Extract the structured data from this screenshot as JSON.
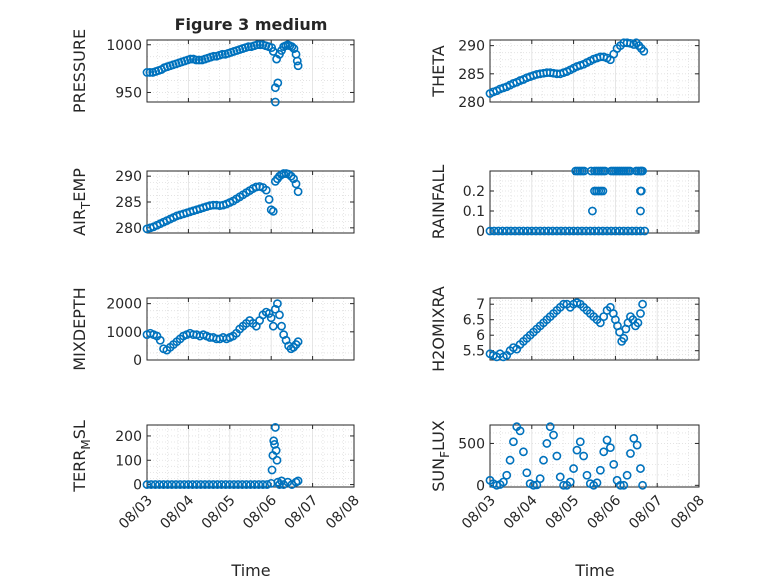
{
  "figure_title": "Figure 3 medium",
  "x_axis_label": "Time",
  "x_tick_labels": [
    "08/03",
    "08/04",
    "08/05",
    "08/06",
    "08/07",
    "08/08"
  ],
  "colors": {
    "marker": "#0072BD",
    "axis": "#262626",
    "grid": "#dfdfdf"
  },
  "chart_data": [
    {
      "type": "scatter",
      "title": "Figure 3 medium",
      "ylabel": "PRESSURE",
      "xlabel": "",
      "xlim": [
        0,
        5
      ],
      "ylim": [
        940,
        1005
      ],
      "yticks": [
        950,
        1000
      ],
      "grid": true,
      "x": [
        0,
        0.07,
        0.14,
        0.21,
        0.28,
        0.35,
        0.42,
        0.49,
        0.56,
        0.63,
        0.7,
        0.77,
        0.84,
        0.91,
        0.98,
        1.05,
        1.12,
        1.19,
        1.26,
        1.33,
        1.4,
        1.47,
        1.54,
        1.61,
        1.68,
        1.75,
        1.82,
        1.89,
        1.96,
        2.03,
        2.1,
        2.17,
        2.24,
        2.31,
        2.38,
        2.45,
        2.52,
        2.59,
        2.66,
        2.73,
        2.8,
        2.87,
        2.94,
        3.01,
        3.05,
        3.1,
        3.1,
        3.13,
        3.16,
        3.2,
        3.25,
        3.3,
        3.35,
        3.4,
        3.45,
        3.5,
        3.55,
        3.6,
        3.63,
        3.65
      ],
      "y": [
        971,
        971,
        971,
        972,
        973,
        974,
        976,
        977,
        978,
        979,
        980,
        981,
        982,
        983,
        984,
        985,
        985,
        984,
        984,
        984,
        985,
        986,
        987,
        988,
        988,
        989,
        990,
        990,
        991,
        992,
        993,
        994,
        995,
        996,
        997,
        998,
        998,
        999,
        1000,
        1000,
        1000,
        999,
        998,
        997,
        993,
        955,
        940,
        985,
        960,
        990,
        994,
        998,
        999,
        1000,
        999,
        998,
        996,
        990,
        983,
        978
      ]
    },
    {
      "type": "scatter",
      "title": "",
      "ylabel": "THETA",
      "xlabel": "",
      "xlim": [
        0,
        5
      ],
      "ylim": [
        280,
        291
      ],
      "yticks": [
        280,
        285,
        290
      ],
      "grid": true,
      "x": [
        0,
        0.08,
        0.16,
        0.24,
        0.32,
        0.4,
        0.48,
        0.56,
        0.64,
        0.72,
        0.8,
        0.88,
        0.96,
        1.04,
        1.12,
        1.2,
        1.28,
        1.36,
        1.44,
        1.52,
        1.6,
        1.68,
        1.76,
        1.84,
        1.92,
        2,
        2.08,
        2.16,
        2.24,
        2.32,
        2.4,
        2.48,
        2.56,
        2.64,
        2.72,
        2.8,
        2.88,
        2.96,
        3.04,
        3.12,
        3.2,
        3.28,
        3.36,
        3.44,
        3.5,
        3.56,
        3.62,
        3.68
      ],
      "y": [
        281.5,
        281.8,
        282,
        282.3,
        282.5,
        282.7,
        283,
        283.3,
        283.5,
        283.8,
        284,
        284.3,
        284.5,
        284.7,
        284.9,
        285,
        285.1,
        285.2,
        285.2,
        285.1,
        285,
        285,
        285.2,
        285.4,
        285.7,
        286,
        286.3,
        286.5,
        286.7,
        287,
        287.3,
        287.6,
        287.8,
        288,
        288,
        287.8,
        287.5,
        288.5,
        289.5,
        290,
        290.5,
        290.5,
        290.4,
        290.2,
        290.5,
        290,
        289.5,
        289
      ]
    },
    {
      "type": "scatter",
      "title": "",
      "ylabel": "AIR_TEMP",
      "xlabel": "",
      "xlim": [
        0,
        5
      ],
      "ylim": [
        279,
        291
      ],
      "yticks": [
        280,
        285,
        290
      ],
      "grid": true,
      "x": [
        0,
        0.08,
        0.16,
        0.24,
        0.32,
        0.4,
        0.48,
        0.56,
        0.64,
        0.72,
        0.8,
        0.88,
        0.96,
        1.04,
        1.12,
        1.2,
        1.28,
        1.36,
        1.44,
        1.52,
        1.6,
        1.68,
        1.76,
        1.84,
        1.92,
        2,
        2.08,
        2.16,
        2.24,
        2.32,
        2.4,
        2.48,
        2.56,
        2.64,
        2.72,
        2.8,
        2.88,
        2.95,
        3.0,
        3.05,
        3.1,
        3.15,
        3.2,
        3.25,
        3.3,
        3.36,
        3.42,
        3.48,
        3.54,
        3.6,
        3.65
      ],
      "y": [
        279.8,
        280,
        280.2,
        280.5,
        280.8,
        281.1,
        281.4,
        281.7,
        282,
        282.3,
        282.5,
        282.7,
        282.9,
        283.1,
        283.3,
        283.5,
        283.7,
        283.9,
        284.1,
        284.3,
        284.4,
        284.4,
        284.3,
        284.4,
        284.6,
        284.9,
        285.2,
        285.6,
        286,
        286.4,
        286.8,
        287.2,
        287.6,
        287.9,
        288,
        287.8,
        287.3,
        285.5,
        283.5,
        283.2,
        289,
        289.5,
        290,
        290.3,
        290.5,
        290.5,
        290.4,
        290,
        289.5,
        288.5,
        287
      ]
    },
    {
      "type": "scatter",
      "title": "",
      "ylabel": "RAINFALL",
      "xlabel": "",
      "xlim": [
        0,
        5
      ],
      "ylim": [
        -0.01,
        0.3
      ],
      "yticks": [
        0,
        0.1,
        0.2
      ],
      "grid": true,
      "x": [
        0,
        0.1,
        0.2,
        0.3,
        0.4,
        0.5,
        0.6,
        0.7,
        0.8,
        0.9,
        1,
        1.1,
        1.2,
        1.3,
        1.4,
        1.5,
        1.6,
        1.7,
        1.8,
        1.9,
        2,
        2.1,
        2.2,
        2.3,
        2.4,
        2.5,
        2.6,
        2.7,
        2.8,
        2.9,
        3,
        3.1,
        3.2,
        3.3,
        3.4,
        3.5,
        3.6,
        3.7,
        2.05,
        2.1,
        2.15,
        2.2,
        2.25,
        2.42,
        2.5,
        2.55,
        2.6,
        2.65,
        2.7,
        2.75,
        2.9,
        2.95,
        3.0,
        3.05,
        3.1,
        3.15,
        3.2,
        3.25,
        3.3,
        3.35,
        3.5,
        3.55,
        3.6,
        3.62,
        3.65,
        2.5,
        2.55,
        2.6,
        2.65,
        2.7,
        3.6,
        3.62,
        2.45,
        3.6
      ],
      "y": [
        0,
        0,
        0,
        0,
        0,
        0,
        0,
        0,
        0,
        0,
        0,
        0,
        0,
        0,
        0,
        0,
        0,
        0,
        0,
        0,
        0,
        0,
        0,
        0,
        0,
        0,
        0,
        0,
        0,
        0,
        0,
        0,
        0,
        0,
        0,
        0,
        0,
        0,
        0.3,
        0.3,
        0.3,
        0.3,
        0.3,
        0.3,
        0.3,
        0.3,
        0.3,
        0.3,
        0.3,
        0.3,
        0.3,
        0.3,
        0.3,
        0.3,
        0.3,
        0.3,
        0.3,
        0.3,
        0.3,
        0.3,
        0.3,
        0.3,
        0.3,
        0.3,
        0.3,
        0.2,
        0.2,
        0.2,
        0.2,
        0.2,
        0.2,
        0.2,
        0.1,
        0.1
      ]
    },
    {
      "type": "scatter",
      "title": "",
      "ylabel": "MIXDEPTH",
      "xlabel": "",
      "xlim": [
        0,
        5
      ],
      "ylim": [
        0,
        2200
      ],
      "yticks": [
        0,
        1000,
        2000
      ],
      "grid": true,
      "x": [
        0,
        0.08,
        0.16,
        0.24,
        0.32,
        0.4,
        0.48,
        0.56,
        0.64,
        0.72,
        0.8,
        0.88,
        0.96,
        1.04,
        1.12,
        1.2,
        1.28,
        1.36,
        1.44,
        1.52,
        1.6,
        1.68,
        1.76,
        1.84,
        1.92,
        2,
        2.08,
        2.16,
        2.24,
        2.32,
        2.4,
        2.48,
        2.56,
        2.64,
        2.72,
        2.8,
        2.88,
        2.95,
        3.0,
        3.05,
        3.1,
        3.15,
        3.2,
        3.25,
        3.3,
        3.36,
        3.42,
        3.48,
        3.54,
        3.6,
        3.65
      ],
      "y": [
        900,
        950,
        900,
        850,
        700,
        400,
        350,
        450,
        550,
        650,
        750,
        850,
        900,
        950,
        900,
        900,
        850,
        900,
        850,
        800,
        800,
        750,
        750,
        800,
        750,
        800,
        850,
        950,
        1100,
        1200,
        1300,
        1400,
        1300,
        1200,
        1400,
        1600,
        1700,
        1650,
        1500,
        1200,
        1800,
        2000,
        1600,
        1200,
        900,
        700,
        500,
        400,
        450,
        550,
        650
      ]
    },
    {
      "type": "scatter",
      "title": "",
      "ylabel": "H2OMIXRA",
      "xlabel": "",
      "xlim": [
        0,
        5
      ],
      "ylim": [
        5.2,
        7.2
      ],
      "yticks": [
        5.5,
        6,
        6.5,
        7
      ],
      "grid": true,
      "x": [
        0,
        0.08,
        0.16,
        0.24,
        0.32,
        0.4,
        0.48,
        0.56,
        0.64,
        0.72,
        0.8,
        0.88,
        0.96,
        1.04,
        1.12,
        1.2,
        1.28,
        1.36,
        1.44,
        1.52,
        1.6,
        1.68,
        1.76,
        1.84,
        1.92,
        2,
        2.08,
        2.16,
        2.24,
        2.32,
        2.4,
        2.48,
        2.56,
        2.64,
        2.72,
        2.8,
        2.88,
        2.95,
        3.0,
        3.05,
        3.1,
        3.15,
        3.2,
        3.25,
        3.3,
        3.36,
        3.42,
        3.48,
        3.54,
        3.6,
        3.65
      ],
      "y": [
        5.4,
        5.35,
        5.3,
        5.4,
        5.3,
        5.35,
        5.5,
        5.6,
        5.55,
        5.7,
        5.8,
        5.9,
        6,
        6.1,
        6.2,
        6.3,
        6.4,
        6.5,
        6.6,
        6.7,
        6.8,
        6.9,
        7,
        7,
        6.9,
        7,
        7.05,
        7,
        6.9,
        6.8,
        6.7,
        6.6,
        6.5,
        6.4,
        6.6,
        6.8,
        6.9,
        6.7,
        6.5,
        6.3,
        6.1,
        5.8,
        5.9,
        6.2,
        6.4,
        6.6,
        6.5,
        6.3,
        6.4,
        6.7,
        7
      ]
    },
    {
      "type": "scatter",
      "title": "",
      "ylabel": "TERR_MSL",
      "xlabel": "",
      "xlim": [
        0,
        5
      ],
      "ylim": [
        -10,
        245
      ],
      "yticks": [
        0,
        100,
        200
      ],
      "grid": true,
      "x": [
        0,
        0.1,
        0.2,
        0.3,
        0.4,
        0.5,
        0.6,
        0.7,
        0.8,
        0.9,
        1,
        1.1,
        1.2,
        1.3,
        1.4,
        1.5,
        1.6,
        1.7,
        1.8,
        1.9,
        2,
        2.1,
        2.2,
        2.3,
        2.4,
        2.5,
        2.6,
        2.7,
        2.8,
        2.9,
        3.0,
        3.02,
        3.04,
        3.06,
        3.08,
        3.1,
        3.12,
        3.14,
        3.16,
        3.2,
        3.25,
        3.3,
        3.4,
        3.5,
        3.6,
        3.65
      ],
      "y": [
        0,
        0,
        0,
        0,
        0,
        0,
        0,
        0,
        0,
        0,
        0,
        0,
        0,
        0,
        0,
        0,
        0,
        0,
        0,
        0,
        0,
        0,
        0,
        0,
        0,
        0,
        0,
        0,
        0,
        0,
        5,
        60,
        120,
        180,
        165,
        235,
        140,
        100,
        10,
        0,
        15,
        0,
        10,
        0,
        10,
        15
      ]
    },
    {
      "type": "scatter",
      "title": "",
      "ylabel": "SUN_FLUX",
      "xlabel": "",
      "xlim": [
        0,
        5
      ],
      "ylim": [
        -20,
        720
      ],
      "yticks": [
        0,
        500
      ],
      "grid": true,
      "x": [
        0,
        0.08,
        0.16,
        0.24,
        0.32,
        0.4,
        0.48,
        0.56,
        0.64,
        0.72,
        0.8,
        0.88,
        0.96,
        1.04,
        1.12,
        1.2,
        1.28,
        1.36,
        1.44,
        1.52,
        1.6,
        1.68,
        1.76,
        1.84,
        1.92,
        2,
        2.08,
        2.16,
        2.24,
        2.32,
        2.4,
        2.48,
        2.56,
        2.64,
        2.72,
        2.8,
        2.88,
        2.96,
        3.04,
        3.12,
        3.2,
        3.28,
        3.36,
        3.44,
        3.52,
        3.6,
        3.65
      ],
      "y": [
        60,
        20,
        0,
        10,
        40,
        120,
        300,
        520,
        700,
        650,
        400,
        150,
        20,
        0,
        5,
        80,
        300,
        500,
        700,
        600,
        350,
        100,
        0,
        0,
        40,
        200,
        420,
        520,
        350,
        120,
        20,
        0,
        30,
        180,
        400,
        540,
        450,
        250,
        60,
        0,
        0,
        120,
        380,
        560,
        480,
        200,
        0
      ]
    }
  ],
  "panel_axis_labels": [
    {
      "main": "PRESSURE",
      "sub": ""
    },
    {
      "main": "THETA",
      "sub": ""
    },
    {
      "main": "AIR",
      "sub": "T",
      "rest": "EMP"
    },
    {
      "main": "RAINFALL",
      "sub": ""
    },
    {
      "main": "MIXDEPTH",
      "sub": ""
    },
    {
      "main": "H2OMIXRA",
      "sub": ""
    },
    {
      "main": "TERR",
      "sub": "M",
      "rest": "SL"
    },
    {
      "main": "SUN",
      "sub": "F",
      "rest": "LUX"
    }
  ]
}
